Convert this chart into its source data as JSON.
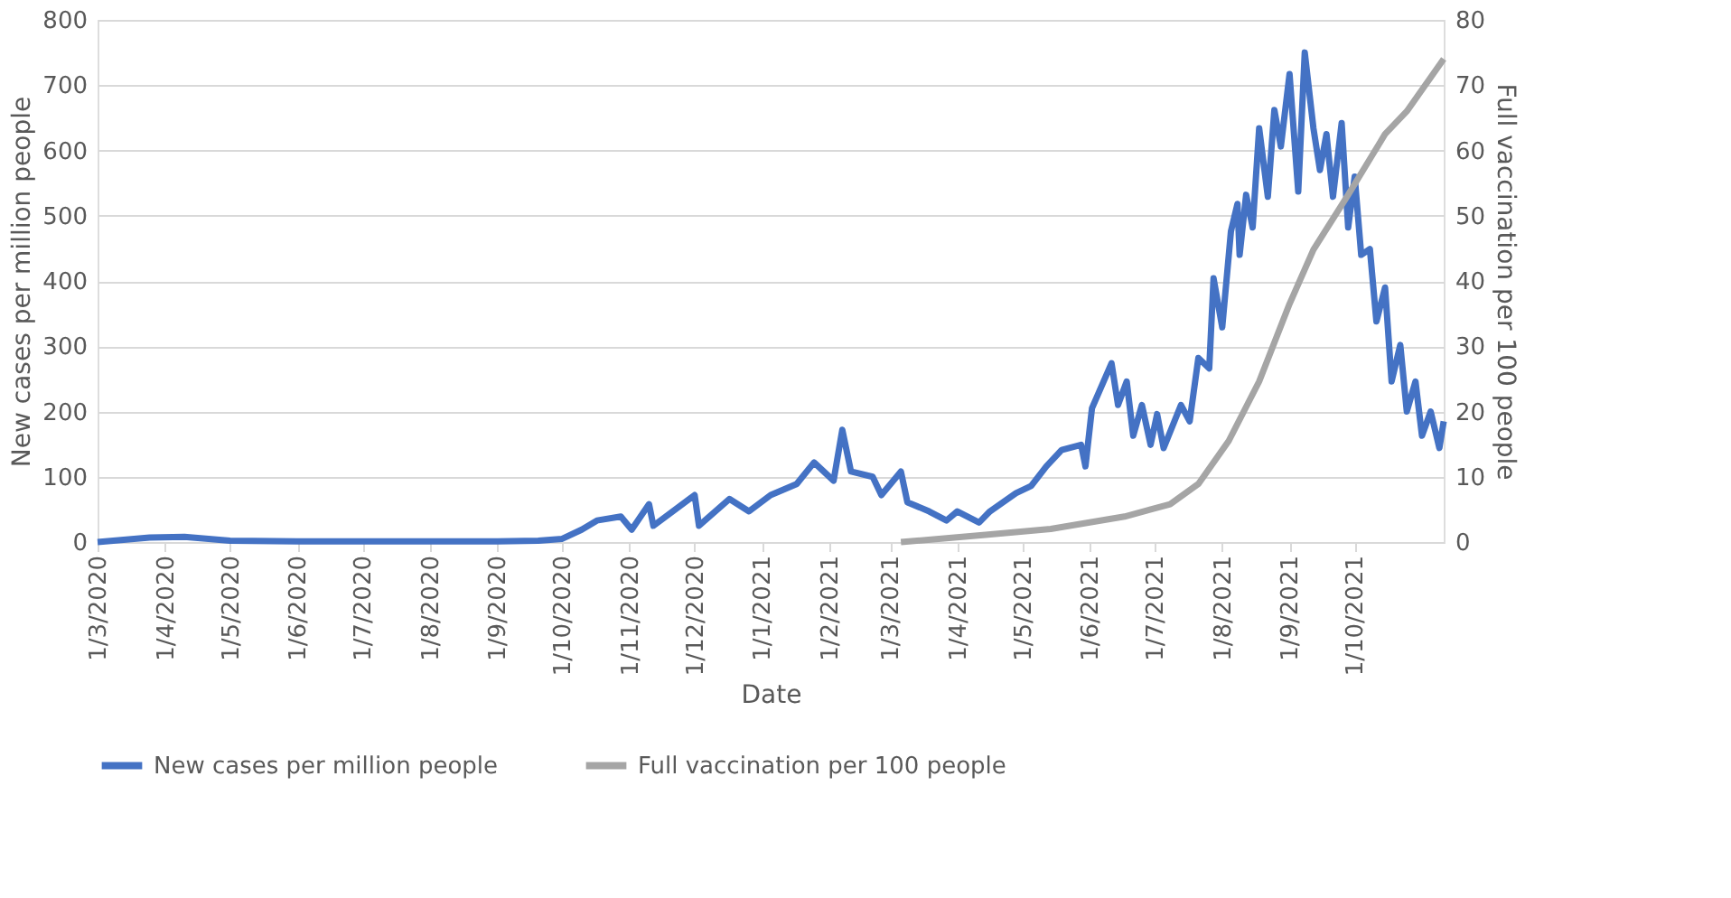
{
  "chart_data": {
    "type": "line",
    "xlabel": "Date",
    "ylabel": "New cases per million people",
    "y2label": "Full vaccination per 100 people",
    "xlim": [
      "2020-03-01",
      "2021-11-11"
    ],
    "xticks": [
      {
        "value": "2020-03-01",
        "label": "1/3/2020"
      },
      {
        "value": "2020-04-01",
        "label": "1/4/2020"
      },
      {
        "value": "2020-05-01",
        "label": "1/5/2020"
      },
      {
        "value": "2020-06-01",
        "label": "1/6/2020"
      },
      {
        "value": "2020-07-01",
        "label": "1/7/2020"
      },
      {
        "value": "2020-08-01",
        "label": "1/8/2020"
      },
      {
        "value": "2020-09-01",
        "label": "1/9/2020"
      },
      {
        "value": "2020-10-01",
        "label": "1/10/2020"
      },
      {
        "value": "2020-11-01",
        "label": "1/11/2020"
      },
      {
        "value": "2020-12-01",
        "label": "1/12/2020"
      },
      {
        "value": "2021-01-01",
        "label": "1/1/2021"
      },
      {
        "value": "2021-02-01",
        "label": "1/2/2021"
      },
      {
        "value": "2021-03-01",
        "label": "1/3/2021"
      },
      {
        "value": "2021-04-01",
        "label": "1/4/2021"
      },
      {
        "value": "2021-05-01",
        "label": "1/5/2021"
      },
      {
        "value": "2021-06-01",
        "label": "1/6/2021"
      },
      {
        "value": "2021-07-01",
        "label": "1/7/2021"
      },
      {
        "value": "2021-08-01",
        "label": "1/8/2021"
      },
      {
        "value": "2021-09-01",
        "label": "1/9/2021"
      },
      {
        "value": "2021-10-01",
        "label": "1/10/2021"
      }
    ],
    "ylim": [
      0,
      800
    ],
    "yticks": [
      0,
      100,
      200,
      300,
      400,
      500,
      600,
      700,
      800
    ],
    "y2lim": [
      0,
      80
    ],
    "y2ticks": [
      0,
      10,
      20,
      30,
      40,
      50,
      60,
      70,
      80
    ],
    "grid": "y",
    "legend": "bottom",
    "marker": "none",
    "line_style": "solid",
    "series": [
      {
        "name": "New cases per million people",
        "color": "#4472c4",
        "x": [
          "2020-03-01",
          "2020-03-25",
          "2020-04-10",
          "2020-05-01",
          "2020-06-01",
          "2020-07-01",
          "2020-08-01",
          "2020-09-01",
          "2020-09-20",
          "2020-10-01",
          "2020-10-10",
          "2020-10-17",
          "2020-10-28",
          "2020-11-02",
          "2020-11-10",
          "2020-11-12",
          "2020-12-01",
          "2020-12-03",
          "2020-12-17",
          "2020-12-26",
          "2021-01-05",
          "2021-01-17",
          "2021-01-25",
          "2021-02-03",
          "2021-02-07",
          "2021-02-11",
          "2021-02-21",
          "2021-02-25",
          "2021-03-06",
          "2021-03-09",
          "2021-03-19",
          "2021-03-27",
          "2021-04-01",
          "2021-04-11",
          "2021-04-16",
          "2021-04-28",
          "2021-05-05",
          "2021-05-12",
          "2021-05-19",
          "2021-05-28",
          "2021-05-30",
          "2021-06-02",
          "2021-06-11",
          "2021-06-14",
          "2021-06-18",
          "2021-06-21",
          "2021-06-25",
          "2021-06-29",
          "2021-07-02",
          "2021-07-05",
          "2021-07-13",
          "2021-07-17",
          "2021-07-21",
          "2021-07-26",
          "2021-07-28",
          "2021-08-01",
          "2021-08-05",
          "2021-08-08",
          "2021-08-09",
          "2021-08-12",
          "2021-08-15",
          "2021-08-18",
          "2021-08-22",
          "2021-08-25",
          "2021-08-28",
          "2021-09-01",
          "2021-09-05",
          "2021-09-08",
          "2021-09-12",
          "2021-09-15",
          "2021-09-18",
          "2021-09-21",
          "2021-09-25",
          "2021-09-28",
          "2021-10-01",
          "2021-10-04",
          "2021-10-08",
          "2021-10-11",
          "2021-10-15",
          "2021-10-18",
          "2021-10-22",
          "2021-10-25",
          "2021-10-29",
          "2021-11-01",
          "2021-11-05",
          "2021-11-09",
          "2021-11-11"
        ],
        "values": [
          0,
          7,
          8,
          2,
          1,
          1,
          1,
          1,
          2,
          5,
          19,
          33,
          39,
          19,
          58,
          25,
          72,
          25,
          66,
          47,
          72,
          89,
          122,
          94,
          172,
          108,
          100,
          72,
          108,
          61,
          47,
          33,
          47,
          30,
          47,
          75,
          86,
          116,
          141,
          149,
          116,
          205,
          274,
          210,
          246,
          163,
          210,
          149,
          196,
          144,
          210,
          185,
          282,
          266,
          404,
          329,
          476,
          518,
          440,
          532,
          482,
          634,
          529,
          662,
          606,
          717,
          537,
          750,
          634,
          570,
          625,
          529,
          642,
          482,
          560,
          440,
          449,
          338,
          390,
          246,
          302,
          200,
          246,
          163,
          200,
          144,
          185
        ]
      },
      {
        "name": "Full vaccination per 100 people",
        "color": "#a5a5a5",
        "axis": "y2",
        "x": [
          "2021-03-06",
          "2021-04-14",
          "2021-05-14",
          "2021-06-17",
          "2021-07-08",
          "2021-07-21",
          "2021-08-04",
          "2021-08-18",
          "2021-09-01",
          "2021-09-12",
          "2021-09-28",
          "2021-10-15",
          "2021-10-25",
          "2021-11-11"
        ],
        "values": [
          0,
          1.1,
          2,
          3.9,
          5.8,
          8.9,
          15.5,
          24.6,
          36.5,
          44.8,
          53.2,
          62.5,
          66,
          74
        ]
      }
    ]
  }
}
